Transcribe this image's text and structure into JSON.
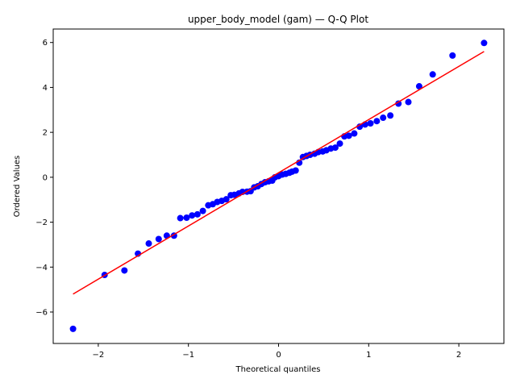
{
  "chart_data": {
    "type": "scatter",
    "title": "upper_body_model (gam) — Q-Q Plot",
    "xlabel": "Theoretical quantiles",
    "ylabel": "Ordered Values",
    "xlim": [
      -2.5,
      2.5
    ],
    "ylim": [
      -7.4,
      6.6
    ],
    "xticks": [
      -2,
      -1,
      0,
      1,
      2
    ],
    "yticks": [
      -6,
      -4,
      -2,
      0,
      2,
      4,
      6
    ],
    "grid": false,
    "point_color": "#0000ff",
    "line_color": "#ff0000",
    "fit_line": {
      "x": [
        -2.28,
        2.28
      ],
      "y": [
        -5.2,
        5.6
      ]
    },
    "points": [
      [
        -2.28,
        -6.75
      ],
      [
        -1.93,
        -4.35
      ],
      [
        -1.71,
        -4.15
      ],
      [
        -1.56,
        -3.4
      ],
      [
        -1.44,
        -2.95
      ],
      [
        -1.33,
        -2.75
      ],
      [
        -1.24,
        -2.6
      ],
      [
        -1.16,
        -2.6
      ],
      [
        -1.09,
        -1.82
      ],
      [
        -1.02,
        -1.8
      ],
      [
        -0.96,
        -1.7
      ],
      [
        -0.9,
        -1.65
      ],
      [
        -0.84,
        -1.5
      ],
      [
        -0.78,
        -1.25
      ],
      [
        -0.73,
        -1.2
      ],
      [
        -0.68,
        -1.1
      ],
      [
        -0.63,
        -1.05
      ],
      [
        -0.58,
        -0.98
      ],
      [
        -0.53,
        -0.8
      ],
      [
        -0.49,
        -0.78
      ],
      [
        -0.44,
        -0.72
      ],
      [
        -0.4,
        -0.65
      ],
      [
        -0.35,
        -0.64
      ],
      [
        -0.31,
        -0.62
      ],
      [
        -0.27,
        -0.45
      ],
      [
        -0.23,
        -0.4
      ],
      [
        -0.19,
        -0.3
      ],
      [
        -0.15,
        -0.22
      ],
      [
        -0.11,
        -0.18
      ],
      [
        -0.07,
        -0.15
      ],
      [
        -0.04,
        0.0
      ],
      [
        0.0,
        0.05
      ],
      [
        0.04,
        0.12
      ],
      [
        0.08,
        0.15
      ],
      [
        0.12,
        0.2
      ],
      [
        0.15,
        0.25
      ],
      [
        0.19,
        0.3
      ],
      [
        0.23,
        0.65
      ],
      [
        0.27,
        0.9
      ],
      [
        0.31,
        0.95
      ],
      [
        0.35,
        1.0
      ],
      [
        0.4,
        1.05
      ],
      [
        0.44,
        1.12
      ],
      [
        0.49,
        1.15
      ],
      [
        0.53,
        1.2
      ],
      [
        0.58,
        1.28
      ],
      [
        0.63,
        1.32
      ],
      [
        0.68,
        1.5
      ],
      [
        0.73,
        1.82
      ],
      [
        0.78,
        1.85
      ],
      [
        0.84,
        1.95
      ],
      [
        0.9,
        2.25
      ],
      [
        0.96,
        2.35
      ],
      [
        1.02,
        2.4
      ],
      [
        1.09,
        2.5
      ],
      [
        1.16,
        2.65
      ],
      [
        1.24,
        2.75
      ],
      [
        1.33,
        3.28
      ],
      [
        1.44,
        3.35
      ],
      [
        1.56,
        4.05
      ],
      [
        1.71,
        4.58
      ],
      [
        1.93,
        5.42
      ],
      [
        2.28,
        5.98
      ]
    ]
  }
}
